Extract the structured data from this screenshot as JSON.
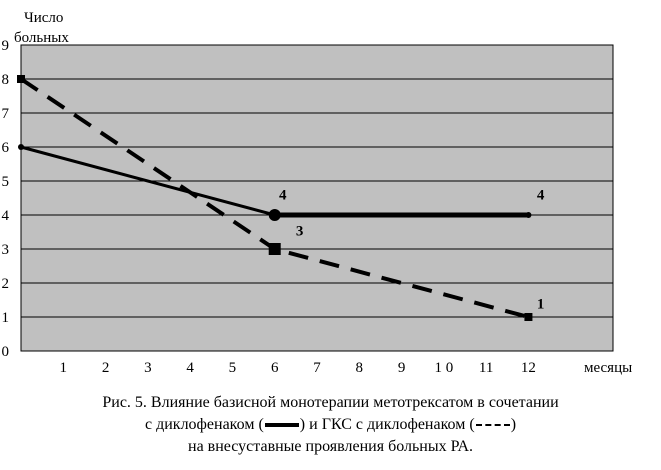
{
  "chart_data": {
    "type": "line",
    "ylabel_line1": "Число",
    "ylabel_line2": "больных",
    "xlabel": "месяцы",
    "x_ticks": [
      "1",
      "2",
      "3",
      "4",
      "5",
      "6",
      "7",
      "8",
      "9",
      "1 0",
      "11",
      "12"
    ],
    "y_ticks": [
      "0",
      "1",
      "2",
      "3",
      "4",
      "5",
      "6",
      "7",
      "8",
      "9"
    ],
    "xlim": [
      0,
      14
    ],
    "ylim": [
      0,
      9
    ],
    "grid": "horizontal",
    "series": [
      {
        "style": "solid",
        "x": [
          0,
          6,
          12
        ],
        "y": [
          6,
          4,
          4
        ]
      },
      {
        "style": "dashed",
        "x": [
          0,
          6,
          12
        ],
        "y": [
          8,
          3,
          1
        ]
      }
    ],
    "annotations": [
      {
        "text": "4",
        "x": 6.1,
        "y": 4.45
      },
      {
        "text": "3",
        "x": 6.5,
        "y": 3.4
      },
      {
        "text": "4",
        "x": 12.2,
        "y": 4.45
      },
      {
        "text": "1",
        "x": 12.2,
        "y": 1.25
      }
    ],
    "colors": {
      "plot_bg": "#c0c0c0",
      "line": "#000000",
      "grid": "#000000"
    }
  },
  "caption": {
    "line1": "Рис. 5. Влияние базисной монотерапии метотрексатом в сочетании",
    "line2_part1": "с диклофенаком (",
    "line2_part2": ") и ГКС с диклофенаком (",
    "line2_part3": ")",
    "line3": "на внесуставные проявления больных РА."
  }
}
